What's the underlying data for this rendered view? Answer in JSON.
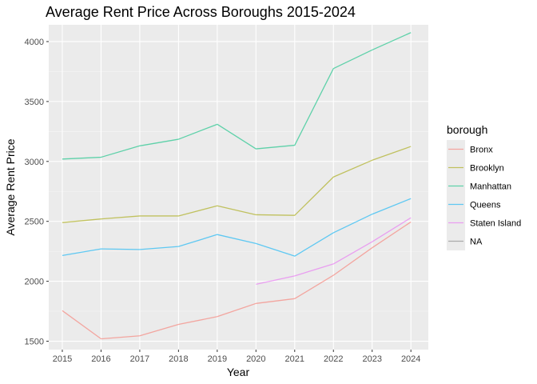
{
  "chart_data": {
    "type": "line",
    "title": "Average Rent Price Across Boroughs 2015-2024",
    "xlabel": "Year",
    "ylabel": "Average Rent Price",
    "x": [
      2015,
      2016,
      2017,
      2018,
      2019,
      2020,
      2021,
      2022,
      2023,
      2024
    ],
    "x_ticks": [
      "2015",
      "2016",
      "2017",
      "2018",
      "2019",
      "2020",
      "2021",
      "2022",
      "2023",
      "2024"
    ],
    "y_ticks": [
      "1500",
      "2000",
      "2500",
      "3000",
      "3500",
      "4000"
    ],
    "ylim": [
      1430,
      4140
    ],
    "xlim": [
      2014.65,
      2024.45
    ],
    "grid": true,
    "legend": {
      "title": "borough",
      "placement": "right",
      "entries": [
        "Bronx",
        "Brooklyn",
        "Manhattan",
        "Queens",
        "Staten Island",
        "NA"
      ]
    },
    "series": [
      {
        "name": "Bronx",
        "color": "#F8766D",
        "values": [
          1755,
          1520,
          1545,
          1640,
          1705,
          1815,
          1855,
          2050,
          2280,
          2495
        ]
      },
      {
        "name": "Brooklyn",
        "color": "#A3A500",
        "values": [
          2490,
          2520,
          2545,
          2545,
          2630,
          2555,
          2550,
          2870,
          3010,
          3125
        ]
      },
      {
        "name": "Manhattan",
        "color": "#00BF7D",
        "values": [
          3020,
          3035,
          3130,
          3185,
          3310,
          3105,
          3135,
          3775,
          3930,
          4075
        ]
      },
      {
        "name": "Queens",
        "color": "#00B0F6",
        "values": [
          2215,
          2270,
          2265,
          2290,
          2390,
          2315,
          2210,
          2405,
          2560,
          2690
        ]
      },
      {
        "name": "Staten Island",
        "color": "#E76BF3",
        "values": [
          null,
          null,
          null,
          null,
          null,
          1975,
          2045,
          2145,
          2330,
          2530
        ]
      },
      {
        "name": "NA",
        "color": "#7F7F7F",
        "values": [
          null,
          null,
          null,
          null,
          null,
          null,
          null,
          null,
          null,
          null
        ]
      }
    ]
  }
}
